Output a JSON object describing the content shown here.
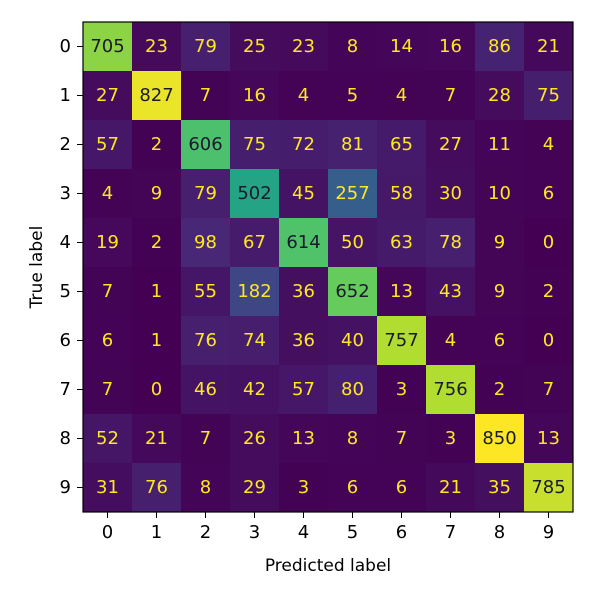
{
  "chart_data": {
    "type": "heatmap",
    "title": "",
    "xlabel": "Predicted label",
    "ylabel": "True label",
    "x_categories": [
      "0",
      "1",
      "2",
      "3",
      "4",
      "5",
      "6",
      "7",
      "8",
      "9"
    ],
    "y_categories": [
      "0",
      "1",
      "2",
      "3",
      "4",
      "5",
      "6",
      "7",
      "8",
      "9"
    ],
    "values": [
      [
        705,
        23,
        79,
        25,
        23,
        8,
        14,
        16,
        86,
        21
      ],
      [
        27,
        827,
        7,
        16,
        4,
        5,
        4,
        7,
        28,
        75
      ],
      [
        57,
        2,
        606,
        75,
        72,
        81,
        65,
        27,
        11,
        4
      ],
      [
        4,
        9,
        79,
        502,
        45,
        257,
        58,
        30,
        10,
        6
      ],
      [
        19,
        2,
        98,
        67,
        614,
        50,
        63,
        78,
        9,
        0
      ],
      [
        7,
        1,
        55,
        182,
        36,
        652,
        13,
        43,
        9,
        2
      ],
      [
        6,
        1,
        76,
        74,
        36,
        40,
        757,
        4,
        6,
        0
      ],
      [
        7,
        0,
        46,
        42,
        57,
        80,
        3,
        756,
        2,
        7
      ],
      [
        52,
        21,
        7,
        26,
        13,
        8,
        7,
        3,
        850,
        13
      ],
      [
        31,
        76,
        8,
        29,
        3,
        6,
        6,
        21,
        35,
        785
      ]
    ],
    "colormap": "viridis",
    "vmin": 0,
    "vmax": 850,
    "text_color_light": "#fde725",
    "text_color_dark": "#1a1a2e",
    "grid": false
  }
}
